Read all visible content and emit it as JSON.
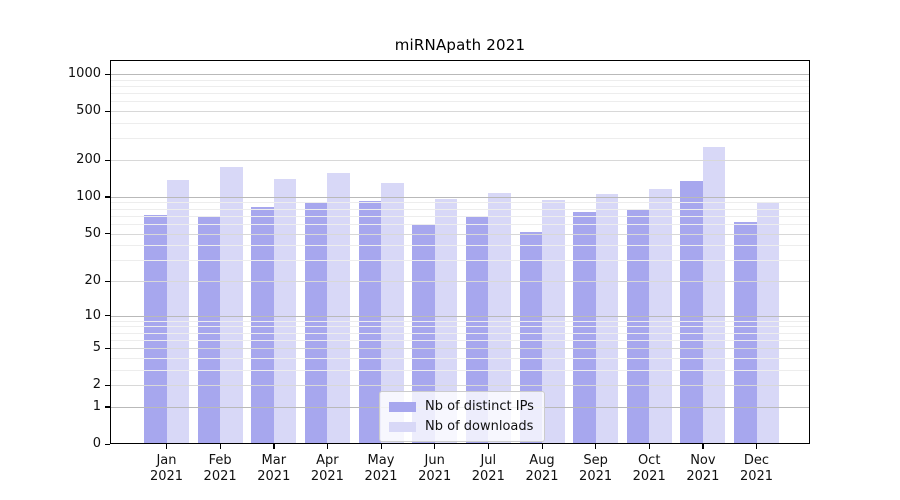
{
  "title": "miRNApath 2021",
  "chart_data": {
    "type": "bar",
    "title": "miRNApath 2021",
    "categories": [
      "Jan 2021",
      "Feb 2021",
      "Mar 2021",
      "Apr 2021",
      "May 2021",
      "Jun 2021",
      "Jul 2021",
      "Aug 2021",
      "Sep 2021",
      "Oct 2021",
      "Nov 2021",
      "Dec 2021"
    ],
    "series": [
      {
        "key": "ips",
        "name": "Nb of distinct IPs",
        "color": "#a7a7ee",
        "values": [
          71,
          70,
          83,
          90,
          93,
          60,
          68,
          51,
          75,
          79,
          136,
          62
        ]
      },
      {
        "key": "downloads",
        "name": "Nb of downloads",
        "color": "#d8d8f7",
        "values": [
          138,
          175,
          140,
          157,
          130,
          97,
          108,
          95,
          106,
          117,
          255,
          90
        ]
      }
    ],
    "xlabel": "",
    "ylabel": "",
    "yticks": [
      0,
      1,
      2,
      5,
      10,
      20,
      50,
      100,
      200,
      500,
      1000
    ],
    "scale": "log1p",
    "ylim": [
      0,
      1300
    ],
    "grid": true,
    "grid_on_top": true,
    "legend_position": "lower center",
    "colors": {
      "axis": "#000000",
      "grid_major": "#b9b9b9",
      "grid_minor": "#ededed",
      "background": "#ffffff"
    }
  }
}
